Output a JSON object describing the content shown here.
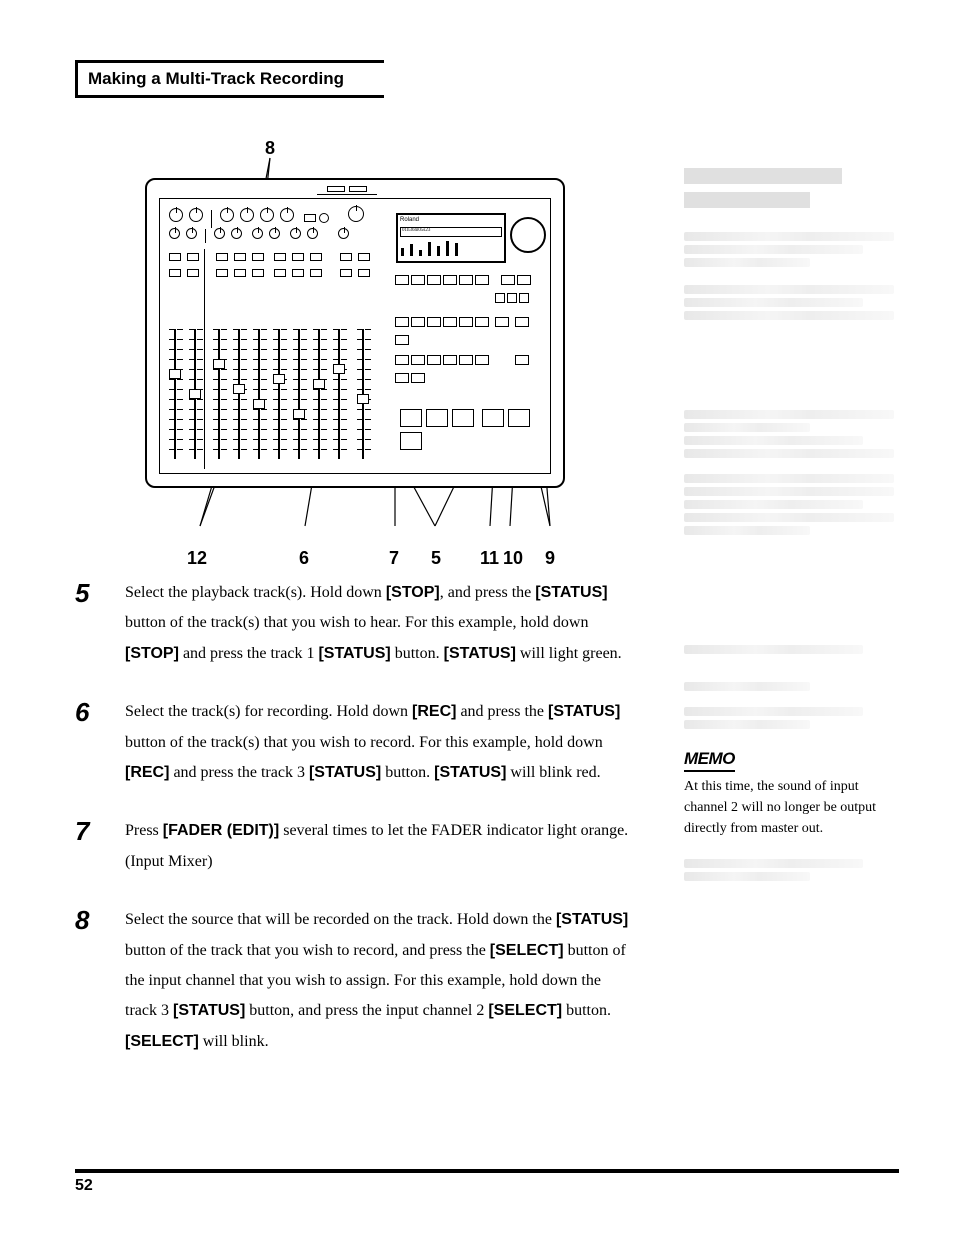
{
  "header": {
    "title": "Making a Multi-Track Recording"
  },
  "diagram": {
    "top_callout": "8",
    "brand": "Roland",
    "bottom_callouts": {
      "c12": "12",
      "c6": "6",
      "c7": "7",
      "c5": "5",
      "c11": "11",
      "c10": "10",
      "c9": "9"
    }
  },
  "steps": [
    {
      "num": "5",
      "html": "Select the playback track(s). Hold down <b>[STOP]</b>, and press the <b>[STATUS]</b> button of the track(s) that you wish to hear. For this example, hold down <b>[STOP]</b> and press the track 1 <b>[STATUS]</b> button. <b>[STATUS]</b> will light green."
    },
    {
      "num": "6",
      "html": "Select the track(s) for recording. Hold down <b>[REC]</b> and press the <b>[STATUS]</b> button of the track(s) that you wish to record. For this example, hold down <b>[REC]</b> and press the track 3 <b>[STATUS]</b> button. <b>[STATUS]</b> will blink red."
    },
    {
      "num": "7",
      "html": "Press <b>[FADER (EDIT)]</b> several times to let the FADER indicator light orange. (Input Mixer)"
    },
    {
      "num": "8",
      "html": "Select the source that will be recorded on the track. Hold down the <b>[STATUS]</b> button of the track that you wish to record, and press the <b>[SELECT]</b> button of the input channel that you wish to assign. For this example, hold down the track 3 <b>[STATUS]</b> button, and press the input channel 2 <b>[SELECT]</b> button. <b>[SELECT]</b> will blink."
    }
  ],
  "memo": {
    "label": "MEMO",
    "text": "At this time, the sound of input channel 2 will no longer be output directly from master out."
  },
  "page_number": "52",
  "colors": {
    "text": "#000000",
    "bg": "#ffffff",
    "ghost": "#eeeeee"
  },
  "typography": {
    "body_size_pt": 12,
    "step_num_size_pt": 20,
    "header_size_pt": 13
  }
}
